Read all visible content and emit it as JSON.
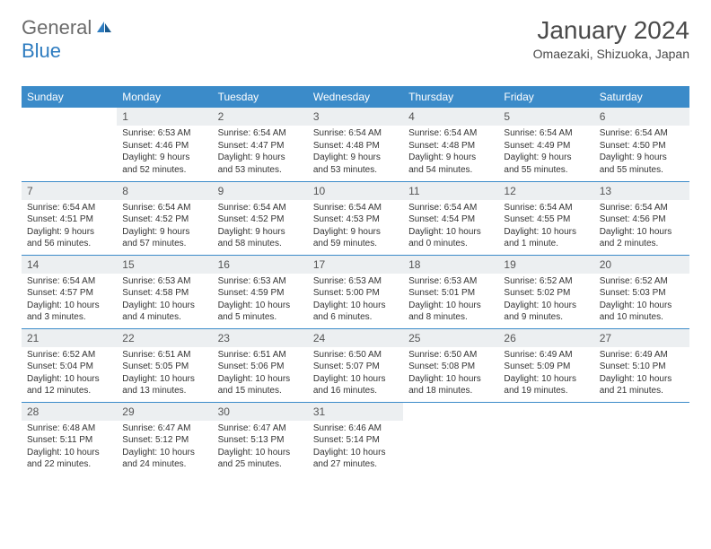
{
  "brand": {
    "part1": "General",
    "part2": "Blue"
  },
  "title": "January 2024",
  "location": "Omaezaki, Shizuoka, Japan",
  "colors": {
    "header_bg": "#3b8bc9",
    "header_text": "#ffffff",
    "daynum_bg": "#eceff1",
    "border": "#3b8bc9",
    "logo_gray": "#6b6b6b",
    "logo_blue": "#2e7cc0"
  },
  "weekdays": [
    "Sunday",
    "Monday",
    "Tuesday",
    "Wednesday",
    "Thursday",
    "Friday",
    "Saturday"
  ],
  "days": {
    "1": {
      "sunrise": "6:53 AM",
      "sunset": "4:46 PM",
      "daylight": "9 hours and 52 minutes."
    },
    "2": {
      "sunrise": "6:54 AM",
      "sunset": "4:47 PM",
      "daylight": "9 hours and 53 minutes."
    },
    "3": {
      "sunrise": "6:54 AM",
      "sunset": "4:48 PM",
      "daylight": "9 hours and 53 minutes."
    },
    "4": {
      "sunrise": "6:54 AM",
      "sunset": "4:48 PM",
      "daylight": "9 hours and 54 minutes."
    },
    "5": {
      "sunrise": "6:54 AM",
      "sunset": "4:49 PM",
      "daylight": "9 hours and 55 minutes."
    },
    "6": {
      "sunrise": "6:54 AM",
      "sunset": "4:50 PM",
      "daylight": "9 hours and 55 minutes."
    },
    "7": {
      "sunrise": "6:54 AM",
      "sunset": "4:51 PM",
      "daylight": "9 hours and 56 minutes."
    },
    "8": {
      "sunrise": "6:54 AM",
      "sunset": "4:52 PM",
      "daylight": "9 hours and 57 minutes."
    },
    "9": {
      "sunrise": "6:54 AM",
      "sunset": "4:52 PM",
      "daylight": "9 hours and 58 minutes."
    },
    "10": {
      "sunrise": "6:54 AM",
      "sunset": "4:53 PM",
      "daylight": "9 hours and 59 minutes."
    },
    "11": {
      "sunrise": "6:54 AM",
      "sunset": "4:54 PM",
      "daylight": "10 hours and 0 minutes."
    },
    "12": {
      "sunrise": "6:54 AM",
      "sunset": "4:55 PM",
      "daylight": "10 hours and 1 minute."
    },
    "13": {
      "sunrise": "6:54 AM",
      "sunset": "4:56 PM",
      "daylight": "10 hours and 2 minutes."
    },
    "14": {
      "sunrise": "6:54 AM",
      "sunset": "4:57 PM",
      "daylight": "10 hours and 3 minutes."
    },
    "15": {
      "sunrise": "6:53 AM",
      "sunset": "4:58 PM",
      "daylight": "10 hours and 4 minutes."
    },
    "16": {
      "sunrise": "6:53 AM",
      "sunset": "4:59 PM",
      "daylight": "10 hours and 5 minutes."
    },
    "17": {
      "sunrise": "6:53 AM",
      "sunset": "5:00 PM",
      "daylight": "10 hours and 6 minutes."
    },
    "18": {
      "sunrise": "6:53 AM",
      "sunset": "5:01 PM",
      "daylight": "10 hours and 8 minutes."
    },
    "19": {
      "sunrise": "6:52 AM",
      "sunset": "5:02 PM",
      "daylight": "10 hours and 9 minutes."
    },
    "20": {
      "sunrise": "6:52 AM",
      "sunset": "5:03 PM",
      "daylight": "10 hours and 10 minutes."
    },
    "21": {
      "sunrise": "6:52 AM",
      "sunset": "5:04 PM",
      "daylight": "10 hours and 12 minutes."
    },
    "22": {
      "sunrise": "6:51 AM",
      "sunset": "5:05 PM",
      "daylight": "10 hours and 13 minutes."
    },
    "23": {
      "sunrise": "6:51 AM",
      "sunset": "5:06 PM",
      "daylight": "10 hours and 15 minutes."
    },
    "24": {
      "sunrise": "6:50 AM",
      "sunset": "5:07 PM",
      "daylight": "10 hours and 16 minutes."
    },
    "25": {
      "sunrise": "6:50 AM",
      "sunset": "5:08 PM",
      "daylight": "10 hours and 18 minutes."
    },
    "26": {
      "sunrise": "6:49 AM",
      "sunset": "5:09 PM",
      "daylight": "10 hours and 19 minutes."
    },
    "27": {
      "sunrise": "6:49 AM",
      "sunset": "5:10 PM",
      "daylight": "10 hours and 21 minutes."
    },
    "28": {
      "sunrise": "6:48 AM",
      "sunset": "5:11 PM",
      "daylight": "10 hours and 22 minutes."
    },
    "29": {
      "sunrise": "6:47 AM",
      "sunset": "5:12 PM",
      "daylight": "10 hours and 24 minutes."
    },
    "30": {
      "sunrise": "6:47 AM",
      "sunset": "5:13 PM",
      "daylight": "10 hours and 25 minutes."
    },
    "31": {
      "sunrise": "6:46 AM",
      "sunset": "5:14 PM",
      "daylight": "10 hours and 27 minutes."
    }
  },
  "labels": {
    "sunrise": "Sunrise:",
    "sunset": "Sunset:",
    "daylight": "Daylight:"
  },
  "layout": {
    "first_day_column": 1,
    "num_days": 31,
    "rows": 5,
    "cols": 7
  }
}
